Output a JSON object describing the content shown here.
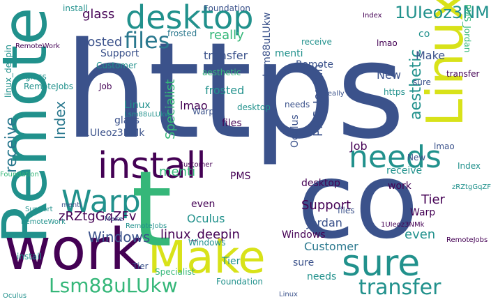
{
  "palette": {
    "dark_blue": "#3b528b",
    "purple": "#440154",
    "teal": "#21918c",
    "green": "#35b779",
    "yellow": "#d8e219",
    "light_green": "#5ec962",
    "cyan_blue": "#2a788e"
  },
  "words": [
    {
      "text": "https"
    },
    {
      "text": "Remote"
    },
    {
      "text": "co"
    },
    {
      "text": "Linux"
    },
    {
      "text": "work"
    },
    {
      "text": "desktop"
    },
    {
      "text": "install"
    },
    {
      "text": "Make"
    },
    {
      "text": "sure"
    },
    {
      "text": "t"
    },
    {
      "text": "needs"
    },
    {
      "text": "Warp"
    },
    {
      "text": "files"
    },
    {
      "text": "Lsm88uLUkw"
    },
    {
      "text": "transfer"
    },
    {
      "text": "Windows"
    },
    {
      "text": "receive"
    },
    {
      "text": "1UIeoz3NMk"
    },
    {
      "text": "frosted"
    },
    {
      "text": "glass"
    },
    {
      "text": "linux_deepin"
    },
    {
      "text": "Index"
    },
    {
      "text": "Support"
    },
    {
      "text": "Customer"
    },
    {
      "text": "Oculus"
    },
    {
      "text": "aesthetic"
    },
    {
      "text": "Specialist"
    },
    {
      "text": "Tier"
    },
    {
      "text": "PMS_Jordan"
    },
    {
      "text": "zRZtgGqZFv"
    },
    {
      "text": "lmao"
    },
    {
      "text": "really"
    },
    {
      "text": "even"
    },
    {
      "text": "menti"
    },
    {
      "text": "Foundation"
    },
    {
      "text": "RemoteWork"
    },
    {
      "text": "RemoteJobs"
    },
    {
      "text": "Job"
    },
    {
      "text": "New"
    },
    {
      "text": "Windows"
    },
    {
      "text": "Oculus"
    },
    {
      "text": "Foundation"
    },
    {
      "text": "Lsm88uLUkw"
    },
    {
      "text": "1UIeoz3NMk"
    },
    {
      "text": "transfer"
    },
    {
      "text": "desktop"
    },
    {
      "text": "receive"
    },
    {
      "text": "needs"
    },
    {
      "text": "Customer"
    },
    {
      "text": "Support"
    },
    {
      "text": "even"
    },
    {
      "text": "sure"
    },
    {
      "text": "glass"
    },
    {
      "text": "frosted"
    },
    {
      "text": "linux_deepin"
    },
    {
      "text": "Index"
    },
    {
      "text": "Remote"
    },
    {
      "text": "Linux"
    },
    {
      "text": "Specialist"
    },
    {
      "text": "install"
    },
    {
      "text": "Warp"
    },
    {
      "text": "menti"
    },
    {
      "text": "Jordan"
    },
    {
      "text": "work"
    },
    {
      "text": "really"
    },
    {
      "text": "lmao"
    },
    {
      "text": "PMS"
    },
    {
      "text": "files"
    },
    {
      "text": "Tier"
    },
    {
      "text": "aesthetic"
    },
    {
      "text": "RemoteJobs"
    },
    {
      "text": "New"
    },
    {
      "text": "Make"
    },
    {
      "text": "co"
    },
    {
      "text": "https"
    },
    {
      "text": "Job"
    },
    {
      "text": "Oculus"
    },
    {
      "text": "zRZtgGqZFv"
    },
    {
      "text": "RemoteWork"
    },
    {
      "text": "Customer"
    },
    {
      "text": "transfer"
    },
    {
      "text": "Windows"
    },
    {
      "text": "Foundation"
    },
    {
      "text": "Support"
    },
    {
      "text": "desktop"
    },
    {
      "text": "Index"
    },
    {
      "text": "glass"
    },
    {
      "text": "PMS_Jordan"
    },
    {
      "text": "menti"
    },
    {
      "text": "sure"
    },
    {
      "text": "receive"
    },
    {
      "text": "needs"
    },
    {
      "text": "Tier"
    },
    {
      "text": "1UIeoz3NMk"
    },
    {
      "text": "Lsm88uLUkw"
    },
    {
      "text": "frosted"
    },
    {
      "text": "Warp"
    },
    {
      "text": "RemoteJobs"
    },
    {
      "text": "Make"
    },
    {
      "text": "files"
    },
    {
      "text": "install"
    },
    {
      "text": "Linux"
    },
    {
      "text": "lmao"
    }
  ]
}
